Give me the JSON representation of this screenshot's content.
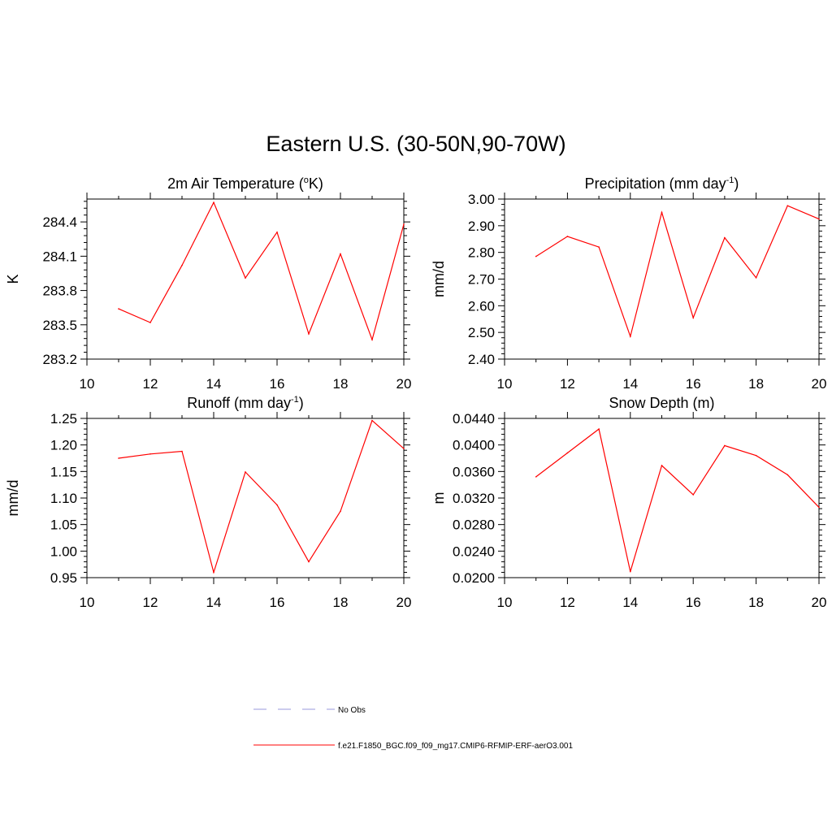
{
  "figure": {
    "title": "Eastern U.S. (30-50N,90-70W)"
  },
  "chart_data": [
    {
      "type": "line",
      "title": "2m Air Temperature (",
      "title_sup": "o",
      "title_tail": "K)",
      "ylabel": "K",
      "xlabel": "",
      "xlim": [
        10,
        20
      ],
      "ylim": [
        283.2,
        284.6
      ],
      "xticks": [
        "10",
        "12",
        "14",
        "16",
        "18",
        "20"
      ],
      "yticks": [
        "283.2",
        "283.5",
        "283.8",
        "284.1",
        "284.4"
      ],
      "series": [
        {
          "color": "#ff0000",
          "x": [
            11,
            12,
            13,
            14,
            15,
            16,
            17,
            18,
            19,
            20
          ],
          "y": [
            283.64,
            283.52,
            284.02,
            284.57,
            283.91,
            284.31,
            283.42,
            284.12,
            283.37,
            284.38
          ]
        }
      ]
    },
    {
      "type": "line",
      "title": "Precipitation (mm day",
      "title_sup": "-1",
      "title_tail": ")",
      "ylabel": "mm/d",
      "xlabel": "",
      "xlim": [
        10,
        20
      ],
      "ylim": [
        2.4,
        3.0
      ],
      "xticks": [
        "10",
        "12",
        "14",
        "16",
        "18",
        "20"
      ],
      "yticks": [
        "2.40",
        "2.50",
        "2.60",
        "2.70",
        "2.80",
        "2.90",
        "3.00"
      ],
      "series": [
        {
          "color": "#ff0000",
          "x": [
            11,
            12,
            13,
            14,
            15,
            16,
            17,
            18,
            19,
            20
          ],
          "y": [
            2.785,
            2.86,
            2.82,
            2.485,
            2.95,
            2.555,
            2.855,
            2.705,
            2.975,
            2.925
          ]
        }
      ]
    },
    {
      "type": "line",
      "title": "Runoff (mm day",
      "title_sup": "-1",
      "title_tail": ")",
      "ylabel": "mm/d",
      "xlabel": "",
      "xlim": [
        10,
        20
      ],
      "ylim": [
        0.95,
        1.25
      ],
      "xticks": [
        "10",
        "12",
        "14",
        "16",
        "18",
        "20"
      ],
      "yticks": [
        "0.95",
        "1.00",
        "1.05",
        "1.10",
        "1.15",
        "1.20",
        "1.25"
      ],
      "series": [
        {
          "color": "#ff0000",
          "x": [
            11,
            12,
            13,
            14,
            15,
            16,
            17,
            18,
            19,
            20
          ],
          "y": [
            1.175,
            1.183,
            1.188,
            0.96,
            1.149,
            1.087,
            0.98,
            1.075,
            1.246,
            1.193
          ]
        }
      ]
    },
    {
      "type": "line",
      "title": "Snow Depth (m)",
      "title_sup": "",
      "title_tail": "",
      "ylabel": "m",
      "xlabel": "",
      "xlim": [
        10,
        20
      ],
      "ylim": [
        0.02,
        0.044
      ],
      "xticks": [
        "10",
        "12",
        "14",
        "16",
        "18",
        "20"
      ],
      "yticks": [
        "0.0200",
        "0.0240",
        "0.0280",
        "0.0320",
        "0.0360",
        "0.0400",
        "0.0440"
      ],
      "series": [
        {
          "color": "#ff0000",
          "x": [
            11,
            12,
            13,
            14,
            15,
            16,
            17,
            18,
            19,
            20
          ],
          "y": [
            0.0352,
            0.0388,
            0.0424,
            0.0209,
            0.0369,
            0.0325,
            0.0399,
            0.0384,
            0.0355,
            0.0306
          ]
        }
      ]
    }
  ],
  "legend": {
    "items": [
      {
        "label": "No Obs",
        "color": "#9999dd",
        "style": "dashed"
      },
      {
        "label": "f.e21.F1850_BGC.f09_f09_mg17.CMIP6-RFMIP-ERF-aerO3.001",
        "color": "#ff0000",
        "style": "solid"
      }
    ]
  }
}
